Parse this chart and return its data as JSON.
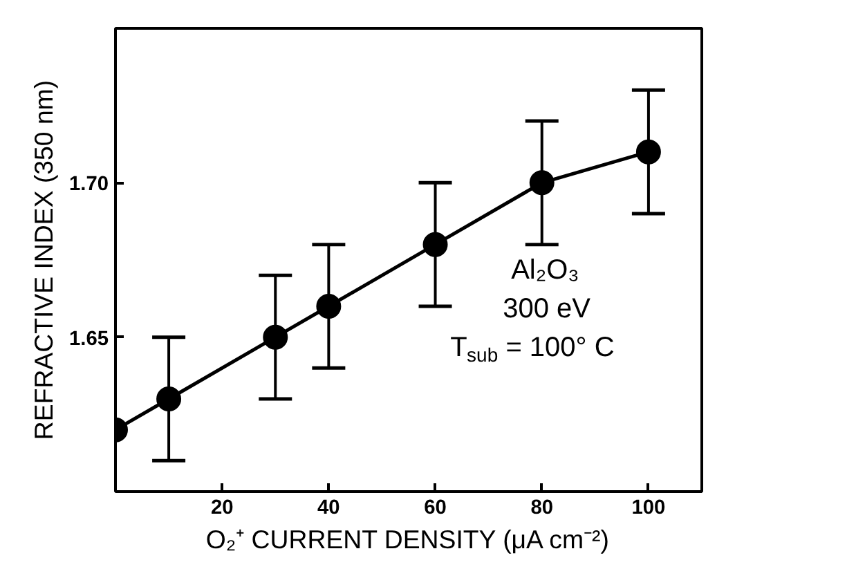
{
  "chart_data": {
    "type": "line",
    "xlabel": "O₂⁺ CURRENT DENSITY (μA cm⁻²)",
    "ylabel": "REFRACTIVE INDEX (350 nm)",
    "x": [
      0,
      10,
      30,
      40,
      60,
      80,
      100
    ],
    "series": [
      {
        "color": "#000000",
        "values": [
          1.62,
          1.63,
          1.65,
          1.66,
          1.68,
          1.7,
          1.71
        ],
        "errors": [
          null,
          0.02,
          0.02,
          0.02,
          0.02,
          0.02,
          0.02
        ]
      }
    ],
    "xlim": [
      0,
      110
    ],
    "ylim": [
      1.6,
      1.75
    ],
    "xticks": [
      20,
      40,
      60,
      80,
      100
    ],
    "yticks": [
      {
        "value": 1.65,
        "label": "1.65"
      },
      {
        "value": 1.7,
        "label": "1.70"
      }
    ],
    "marker": "circle",
    "grid": false,
    "annotations": [
      "Al₂O₃",
      "300 eV",
      "T$_{sub}$ = 100° C"
    ]
  }
}
